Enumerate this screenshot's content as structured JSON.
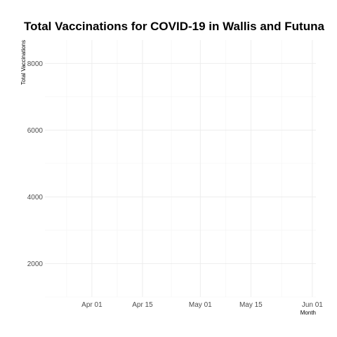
{
  "chart_data": {
    "type": "line",
    "title": "Total Vaccinations for COVID-19 in Wallis and Futuna",
    "xlabel": "Month",
    "ylabel": "Total Vaccinations",
    "x_axis_type": "date",
    "xlim": [
      "2021-03-19",
      "2021-06-02"
    ],
    "ylim": [
      1000,
      8700
    ],
    "x_ticks": [
      {
        "value": "2021-04-01",
        "label": "Apr 01"
      },
      {
        "value": "2021-04-15",
        "label": "Apr 15"
      },
      {
        "value": "2021-05-01",
        "label": "May 01"
      },
      {
        "value": "2021-05-15",
        "label": "May 15"
      },
      {
        "value": "2021-06-01",
        "label": "Jun 01"
      }
    ],
    "y_ticks": [
      {
        "value": 2000,
        "label": "2000"
      },
      {
        "value": 4000,
        "label": "4000"
      },
      {
        "value": 6000,
        "label": "6000"
      },
      {
        "value": 8000,
        "label": "8000"
      }
    ],
    "grid": true,
    "legend": "none",
    "series": [
      {
        "values": []
      }
    ],
    "colors": {
      "grid_major": "#ebebeb",
      "grid_minor": "#f3f3f3",
      "tick_text": "#4d4d4d",
      "title_text": "#000000"
    }
  }
}
